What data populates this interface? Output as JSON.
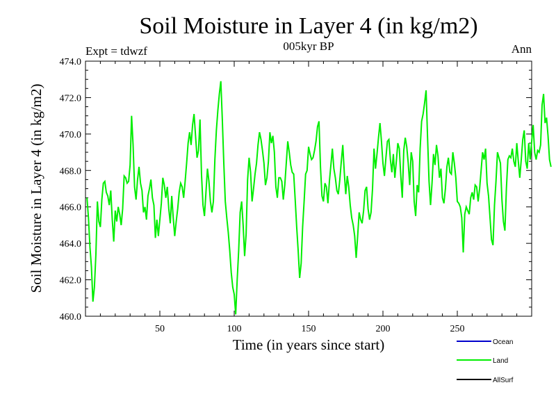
{
  "chart_data": {
    "type": "line",
    "title": "Soil Moisture in Layer 4 (in kg/m2)",
    "subtitle": "005kyr BP",
    "left_label": "Expt = tdwzf",
    "right_label": "Ann",
    "xlabel": "Time (in years since start)",
    "ylabel": "Soil Moisture in Layer 4 (in kg/m2)",
    "xlim": [
      0,
      300
    ],
    "ylim": [
      460,
      474
    ],
    "x_ticks": [
      50,
      100,
      150,
      200,
      250
    ],
    "y_ticks": [
      460.0,
      462.0,
      464.0,
      466.0,
      468.0,
      470.0,
      472.0,
      474.0
    ],
    "y_tick_labels": [
      "460.0",
      "462.0",
      "464.0",
      "466.0",
      "468.0",
      "470.0",
      "472.0",
      "474.0"
    ],
    "grid": false,
    "legend": {
      "placement": "bottom-right",
      "entries": [
        {
          "name": "Ocean",
          "color": "#0000cc"
        },
        {
          "name": "Land",
          "color": "#00ee00"
        },
        {
          "name": "AllSurf",
          "color": "#000000"
        }
      ]
    },
    "series": [
      {
        "name": "Land",
        "color": "#00ee00",
        "x_start": 1,
        "x_step": 1,
        "values": [
          466.5,
          465.4,
          463.8,
          462.7,
          460.8,
          461.6,
          463.4,
          466.3,
          465.2,
          464.9,
          466.4,
          467.3,
          467.4,
          466.8,
          466.6,
          466.1,
          466.9,
          465.3,
          464.1,
          465.8,
          465.2,
          466.0,
          465.6,
          465.0,
          465.9,
          467.7,
          467.6,
          467.3,
          467.4,
          468.3,
          471.0,
          469.4,
          467.1,
          466.4,
          467.5,
          468.2,
          467.3,
          466.9,
          465.7,
          466.0,
          465.3,
          466.6,
          467.0,
          467.5,
          466.5,
          466.1,
          464.3,
          465.3,
          464.4,
          465.3,
          466.2,
          467.6,
          467.2,
          466.5,
          467.1,
          465.9,
          465.1,
          466.6,
          465.4,
          464.4,
          465.2,
          465.9,
          466.8,
          467.3,
          467.1,
          466.5,
          467.4,
          468.4,
          469.5,
          470.1,
          469.4,
          470.5,
          471.1,
          469.9,
          468.7,
          469.1,
          470.8,
          467.8,
          466.1,
          465.5,
          466.8,
          468.1,
          467.4,
          466.3,
          465.7,
          466.3,
          468.6,
          470.2,
          471.3,
          472.2,
          472.9,
          470.8,
          468.4,
          466.3,
          465.4,
          464.6,
          463.6,
          462.4,
          461.6,
          461.2,
          460.1,
          462.0,
          463.6,
          465.7,
          466.3,
          465.0,
          463.3,
          464.5,
          467.5,
          468.7,
          467.9,
          466.3,
          467.0,
          467.8,
          468.4,
          469.4,
          470.1,
          469.7,
          469.1,
          468.4,
          467.2,
          467.6,
          468.5,
          470.1,
          469.5,
          469.9,
          469.0,
          467.1,
          466.5,
          467.6,
          467.6,
          467.4,
          466.4,
          467.2,
          468.4,
          469.6,
          469.0,
          468.3,
          467.9,
          467.8,
          466.4,
          464.9,
          463.6,
          462.1,
          462.9,
          464.9,
          466.3,
          467.8,
          468.0,
          469.3,
          468.9,
          468.6,
          468.7,
          469.1,
          469.6,
          470.4,
          470.7,
          468.2,
          466.6,
          466.3,
          467.3,
          467.1,
          466.2,
          467.4,
          468.3,
          469.2,
          468.1,
          467.6,
          466.9,
          466.7,
          467.5,
          468.5,
          469.4,
          467.9,
          466.7,
          467.7,
          467.1,
          466.1,
          465.4,
          465.0,
          464.4,
          463.2,
          464.4,
          465.7,
          465.3,
          465.1,
          465.8,
          466.9,
          467.1,
          465.9,
          465.3,
          465.7,
          467.0,
          469.2,
          468.1,
          468.9,
          469.8,
          470.6,
          469.6,
          468.4,
          467.7,
          468.7,
          469.6,
          469.7,
          468.6,
          467.9,
          468.9,
          467.6,
          468.5,
          469.5,
          469.2,
          467.7,
          466.5,
          469.1,
          469.8,
          469.3,
          468.4,
          467.2,
          469.0,
          468.5,
          466.3,
          465.5,
          467.2,
          466.8,
          469.2,
          470.7,
          471.1,
          471.7,
          472.4,
          469.8,
          467.4,
          466.1,
          467.3,
          468.9,
          468.3,
          469.4,
          468.8,
          467.6,
          468.1,
          466.5,
          466.2,
          467.0,
          468.2,
          468.7,
          467.9,
          467.8,
          469.0,
          468.4,
          467.6,
          466.3,
          466.2,
          466.0,
          465.4,
          463.5,
          465.6,
          466.0,
          465.8,
          465.6,
          466.5,
          466.8,
          466.4,
          467.2,
          467.1,
          466.3,
          467.0,
          468.0,
          469.0,
          468.6,
          469.2,
          467.3,
          466.6,
          465.4,
          464.2,
          463.9,
          466.1,
          467.4,
          469.0,
          468.7,
          468.4,
          466.4,
          465.2,
          464.7,
          467.0,
          468.6,
          468.8,
          468.7,
          469.2,
          468.5,
          468.2,
          469.5,
          468.5,
          467.6,
          468.6,
          469.7,
          470.2,
          468.5,
          468.1,
          469.5,
          468.6,
          469.6,
          470.5,
          469.0,
          468.6,
          469.1,
          469.0,
          469.4,
          471.6,
          472.2,
          470.6,
          470.9,
          469.9,
          468.6,
          468.2
        ]
      }
    ]
  }
}
